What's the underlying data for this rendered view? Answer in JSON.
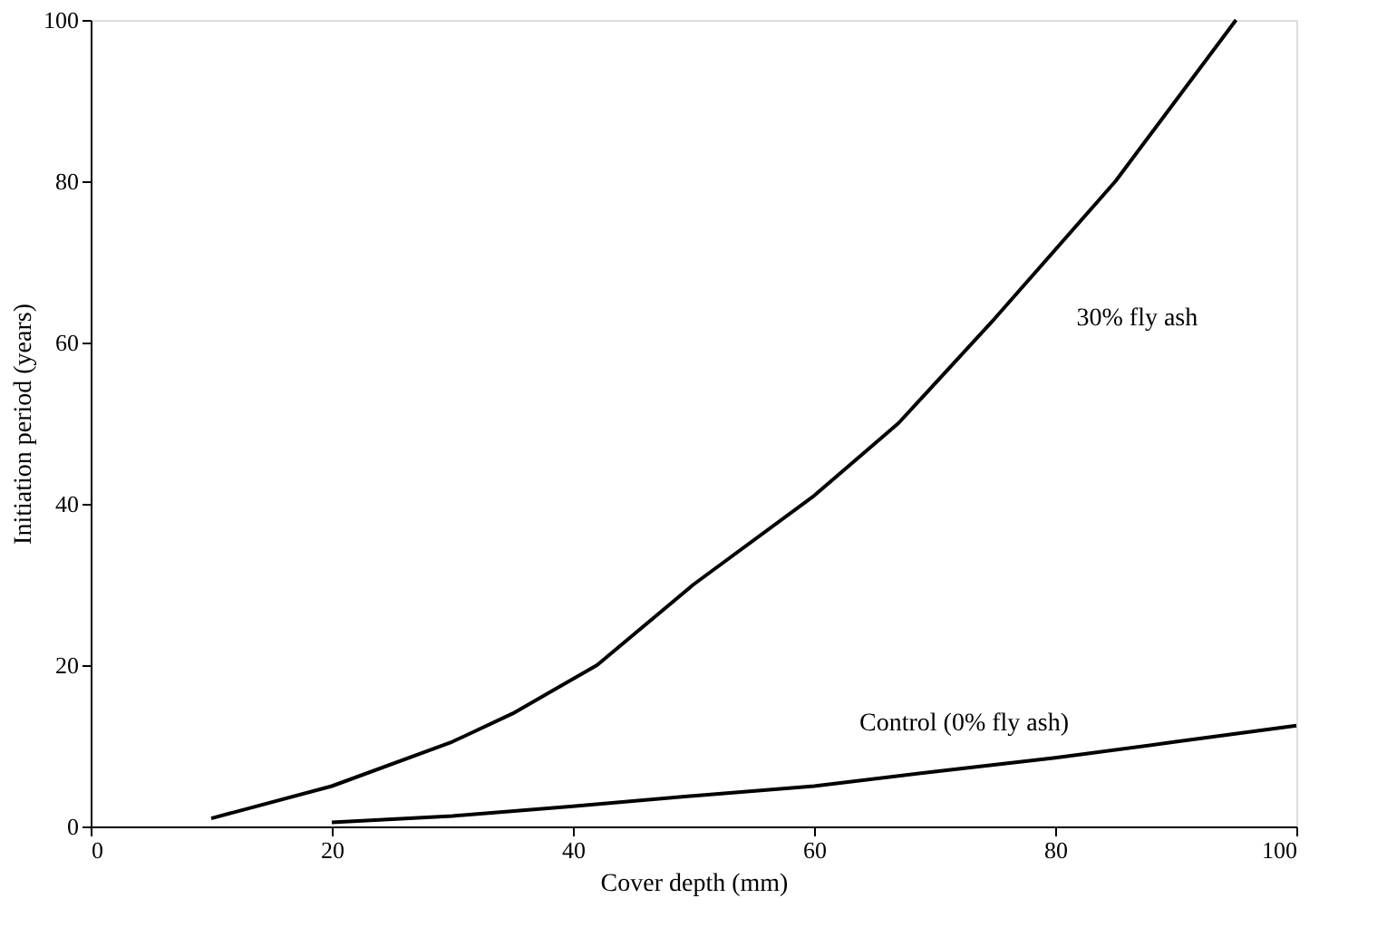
{
  "chart_data": {
    "type": "line",
    "xlabel": "Cover depth (mm)",
    "ylabel": "Initiation period (years)",
    "xlim": [
      0,
      100
    ],
    "ylim": [
      0,
      100
    ],
    "xticks": [
      0,
      20,
      40,
      60,
      80,
      100
    ],
    "yticks": [
      0,
      20,
      40,
      60,
      80,
      100
    ],
    "grid": false,
    "line_style": "solid",
    "marker": "none",
    "series": [
      {
        "name": "30% fly ash",
        "color": "#000000",
        "x": [
          10,
          20,
          30,
          35,
          42,
          50,
          60,
          67,
          75,
          85,
          95
        ],
        "values": [
          1,
          5,
          10.5,
          14,
          20,
          30,
          41,
          50,
          63,
          80,
          100
        ]
      },
      {
        "name": "Control (0% fly ash)",
        "color": "#000000",
        "x": [
          20,
          30,
          40,
          50,
          60,
          70,
          80,
          90,
          100
        ],
        "values": [
          0.5,
          1.3,
          2.5,
          3.8,
          5,
          6.8,
          8.5,
          10.5,
          12.5
        ]
      }
    ]
  }
}
